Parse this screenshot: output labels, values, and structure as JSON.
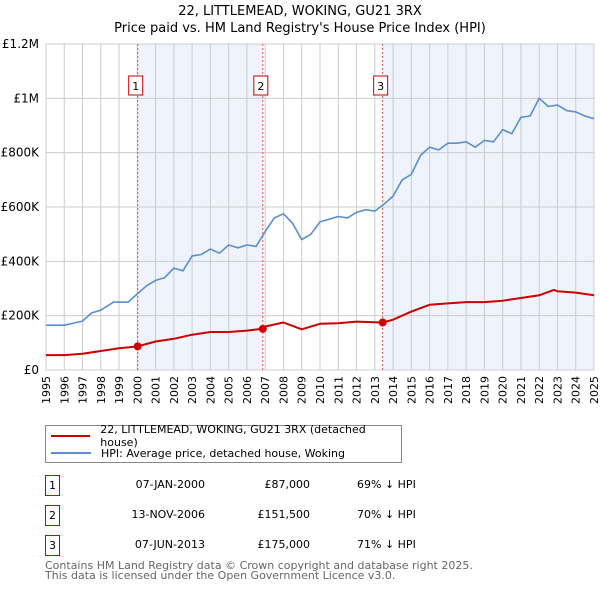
{
  "title_line1": "22, LITTLEMEAD, WOKING, GU21 3RX",
  "title_line2": "Price paid vs. HM Land Registry's House Price Index (HPI)",
  "colors": {
    "property": "#cc0000",
    "hpi": "#5b8fd0",
    "shade": "#eef3fc",
    "grid": "#cccccc"
  },
  "legend": [
    {
      "label": "22, LITTLEMEAD, WOKING, GU21 3RX (detached house)"
    },
    {
      "label": "HPI: Average price, detached house, Woking"
    }
  ],
  "sales": [
    {
      "num": "1",
      "date": "07-JAN-2000",
      "price": "£87,000",
      "hpi": "69% ↓ HPI"
    },
    {
      "num": "2",
      "date": "13-NOV-2006",
      "price": "£151,500",
      "hpi": "70% ↓ HPI"
    },
    {
      "num": "3",
      "date": "07-JUN-2013",
      "price": "£175,000",
      "hpi": "71% ↓ HPI"
    }
  ],
  "footer": {
    "line1": "Contains HM Land Registry data © Crown copyright and database right 2025.",
    "line2": "This data is licensed under the Open Government Licence v3.0."
  },
  "chart_data": {
    "type": "line",
    "xlim": [
      1995,
      2025
    ],
    "ylim": [
      0,
      1200000
    ],
    "yticks": [
      {
        "v": 0,
        "label": "£0"
      },
      {
        "v": 200000,
        "label": "£200K"
      },
      {
        "v": 400000,
        "label": "£400K"
      },
      {
        "v": 600000,
        "label": "£600K"
      },
      {
        "v": 800000,
        "label": "£800K"
      },
      {
        "v": 1000000,
        "label": "£1M"
      },
      {
        "v": 1200000,
        "label": "£1.2M"
      }
    ],
    "xticks": [
      1995,
      1996,
      1997,
      1998,
      1999,
      2000,
      2001,
      2002,
      2003,
      2004,
      2005,
      2006,
      2007,
      2008,
      2009,
      2010,
      2011,
      2012,
      2013,
      2014,
      2015,
      2016,
      2017,
      2018,
      2019,
      2020,
      2021,
      2022,
      2023,
      2024,
      2025
    ],
    "sale_points": [
      {
        "num": "1",
        "x": 2000.02,
        "y": 87000
      },
      {
        "num": "2",
        "x": 2006.87,
        "y": 151500
      },
      {
        "num": "3",
        "x": 2013.43,
        "y": 175000
      }
    ],
    "shaded_ranges": [
      [
        2000.02,
        2006.87
      ],
      [
        2013.43,
        2025
      ]
    ],
    "series": [
      {
        "name": "HPI: Average price, detached house, Woking",
        "x": [
          1995,
          1996,
          1997,
          1997.5,
          1998,
          1998.7,
          1999.5,
          2000,
          2000.5,
          2001,
          2001.5,
          2002,
          2002.5,
          2003,
          2003.5,
          2004,
          2004.5,
          2005,
          2005.5,
          2006,
          2006.5,
          2007,
          2007.5,
          2008,
          2008.5,
          2009,
          2009.5,
          2010,
          2010.5,
          2011,
          2011.5,
          2012,
          2012.5,
          2013,
          2013.5,
          2014,
          2014.5,
          2015,
          2015.5,
          2016,
          2016.5,
          2017,
          2017.5,
          2018,
          2018.5,
          2019,
          2019.5,
          2020,
          2020.5,
          2021,
          2021.5,
          2022,
          2022.5,
          2023,
          2023.5,
          2024,
          2024.5,
          2025
        ],
        "y": [
          165000,
          165000,
          180000,
          210000,
          220000,
          250000,
          250000,
          280000,
          310000,
          330000,
          340000,
          375000,
          365000,
          420000,
          425000,
          445000,
          430000,
          460000,
          450000,
          460000,
          455000,
          510000,
          560000,
          575000,
          540000,
          480000,
          500000,
          545000,
          555000,
          565000,
          560000,
          580000,
          590000,
          585000,
          610000,
          640000,
          700000,
          720000,
          790000,
          820000,
          810000,
          835000,
          835000,
          840000,
          820000,
          845000,
          840000,
          885000,
          870000,
          930000,
          935000,
          1000000,
          970000,
          975000,
          955000,
          950000,
          935000,
          925000
        ]
      },
      {
        "name": "22, LITTLEMEAD, WOKING, GU21 3RX (detached house)",
        "x": [
          1995,
          1996,
          1997,
          1998,
          1999,
          2000.02,
          2001,
          2002,
          2003,
          2004,
          2005,
          2006,
          2006.87,
          2007,
          2008,
          2009,
          2010,
          2011,
          2012,
          2013.43,
          2014,
          2015,
          2016,
          2017,
          2018,
          2019,
          2020,
          2021,
          2022,
          2022.8,
          2023,
          2024,
          2025
        ],
        "y": [
          55000,
          55000,
          60000,
          70000,
          80000,
          87000,
          105000,
          115000,
          130000,
          140000,
          140000,
          145000,
          151500,
          160000,
          175000,
          150000,
          170000,
          172000,
          178000,
          175000,
          185000,
          215000,
          240000,
          245000,
          250000,
          250000,
          255000,
          265000,
          275000,
          295000,
          290000,
          285000,
          275000
        ]
      }
    ]
  }
}
